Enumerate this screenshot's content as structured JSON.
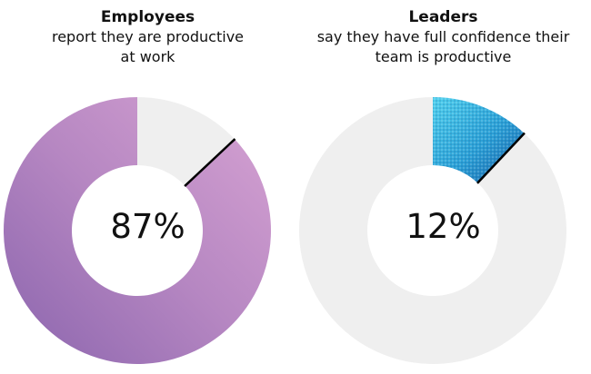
{
  "chart_data": [
    {
      "type": "pie",
      "title": "Employees",
      "subtitle_lines": [
        "report they are productive",
        "at work"
      ],
      "value_label": "87%",
      "slices": [
        {
          "label": "productive",
          "value": 87,
          "color": "#b07ac0"
        },
        {
          "label": "remainder",
          "value": 13,
          "color": "#efefef"
        }
      ]
    },
    {
      "type": "pie",
      "title": "Leaders",
      "subtitle_lines": [
        "say they have full confidence their",
        "team is productive"
      ],
      "value_label": "12%",
      "slices": [
        {
          "label": "full confidence",
          "value": 12,
          "color": "#2a9fd6"
        },
        {
          "label": "remainder",
          "value": 88,
          "color": "#efefef"
        }
      ]
    }
  ]
}
